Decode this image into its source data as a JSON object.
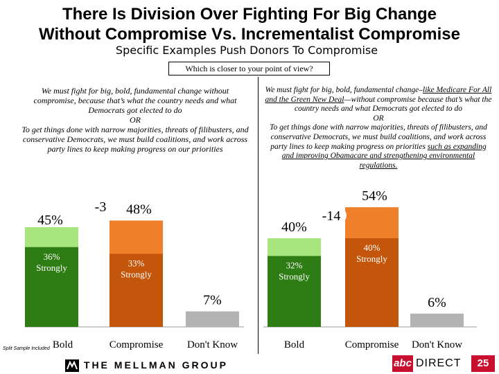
{
  "title_line1": "There Is Division Over Fighting For Big Change",
  "title_line2": "Without Compromise Vs. Incrementalist Compromise",
  "subtitle": "Specific Examples Push Donors To Compromise",
  "question": "Which is closer to your point of view?",
  "left_statement": {
    "line_a": "We must fight for big, bold, fundamental change without compromise, because that’s what the country needs and what Democrats got elected to do",
    "or": "OR",
    "line_b": "To get things done with narrow majorities, threats of filibusters, and conservative Democrats, we must build coalitions, and work across party lines to keep making progress on our priorities"
  },
  "right_statement": {
    "part1": "We must fight for big, bold, fundamental change–",
    "part2_underlined": "like Medicare For All and the Green New Deal",
    "part3": "—without compromise because that’s what the country needs and what Democrats got elected to do",
    "or": "OR",
    "part4": "To get things done with narrow majorities, threats of filibusters, and conservative Democrats, we must build coalitions, and work across party lines to keep making progress on priorities ",
    "part5_underlined": "such as expanding and improving Obamacare and strengthening environmental regulations."
  },
  "chart_data": [
    {
      "type": "bar",
      "panel": "left",
      "categories": [
        "Bold",
        "Compromise",
        "Don't Know"
      ],
      "series": [
        {
          "name": "Strongly",
          "values": [
            36,
            33,
            null
          ]
        },
        {
          "name": "Total",
          "values": [
            45,
            48,
            7
          ]
        }
      ],
      "total_labels": [
        "45%",
        "48%",
        "7%"
      ],
      "strongly_labels": [
        "36%\nStrongly",
        "33%\nStrongly",
        ""
      ],
      "net_label": "-3",
      "ylim": [
        0,
        60
      ]
    },
    {
      "type": "bar",
      "panel": "right",
      "categories": [
        "Bold",
        "Compromise",
        "Don't Know"
      ],
      "series": [
        {
          "name": "Strongly",
          "values": [
            32,
            40,
            null
          ]
        },
        {
          "name": "Total",
          "values": [
            40,
            54,
            6
          ]
        }
      ],
      "total_labels": [
        "40%",
        "54%",
        "6%"
      ],
      "strongly_labels": [
        "32%\nStrongly",
        "40%\nStrongly",
        ""
      ],
      "net_label": "-14",
      "ylim": [
        0,
        60
      ]
    }
  ],
  "colors": {
    "bold_total": "#a9e57f",
    "bold_strongly": "#2e7d14",
    "compromise_total": "#f07f2a",
    "compromise_strongly": "#c4560c",
    "dont_know": "#b3b3b3"
  },
  "footnote": "Split Sample Included",
  "footer_logo": "THE MELLMAN GROUP",
  "brand_abc": "abc",
  "brand_direct": "DIRECT",
  "page_number": "25"
}
